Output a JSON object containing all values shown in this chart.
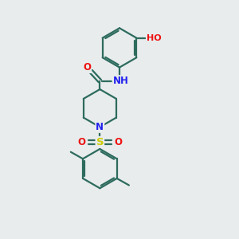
{
  "bg_color": "#e8ecec",
  "bond_color": "#2d6b5e",
  "line_width": 1.6,
  "font_size": 8.5,
  "dbo": 0.055,
  "atom_colors": {
    "O": "#ee1111",
    "N": "#2222ee",
    "S": "#cccc00",
    "C": "#2d6b5e"
  },
  "ring_r": 0.52,
  "pip_r": 0.5
}
